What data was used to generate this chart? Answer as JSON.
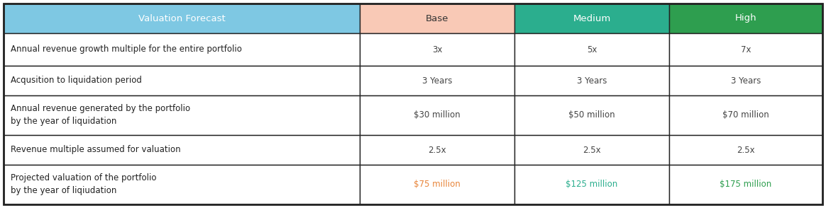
{
  "header": {
    "col0": "Valuation Forecast",
    "col1": "Base",
    "col2": "Medium",
    "col3": "High",
    "col0_bg": "#7EC8E3",
    "col1_bg": "#F9C9B6",
    "col2_bg": "#2BAE8E",
    "col3_bg": "#2E9E4F",
    "col0_color": "#ffffff",
    "col1_color": "#333333",
    "col2_color": "#ffffff",
    "col3_color": "#ffffff"
  },
  "rows": [
    {
      "label": "Annual revenue growth multiple for the entire portfolio",
      "base": "3x",
      "medium": "5x",
      "high": "7x",
      "label_color": "#222222",
      "base_color": "#444444",
      "medium_color": "#444444",
      "high_color": "#444444"
    },
    {
      "label": "Acqusition to liquidation period",
      "base": "3 Years",
      "medium": "3 Years",
      "high": "3 Years",
      "label_color": "#222222",
      "base_color": "#444444",
      "medium_color": "#444444",
      "high_color": "#444444"
    },
    {
      "label": "Annual revenue generated by the portfolio\nby the year of liquidation",
      "base": "$30 million",
      "medium": "$50 million",
      "high": "$70 million",
      "label_color": "#222222",
      "base_color": "#444444",
      "medium_color": "#444444",
      "high_color": "#444444"
    },
    {
      "label": "Revenue multiple assumed for valuation",
      "base": "2.5x",
      "medium": "2.5x",
      "high": "2.5x",
      "label_color": "#222222",
      "base_color": "#444444",
      "medium_color": "#444444",
      "high_color": "#444444"
    },
    {
      "label": "Projected valuation of the portfolio\nby the year of liqiudation",
      "base": "$75 million",
      "medium": "$125 million",
      "high": "$175 million",
      "label_color": "#222222",
      "base_color": "#E8853A",
      "medium_color": "#2BAE8E",
      "high_color": "#2E9E4F"
    }
  ],
  "font_size_header": 9.5,
  "font_size_body": 8.5,
  "border_color": "#222222",
  "bg_color": "#ffffff",
  "outer_border_color": "#222222"
}
